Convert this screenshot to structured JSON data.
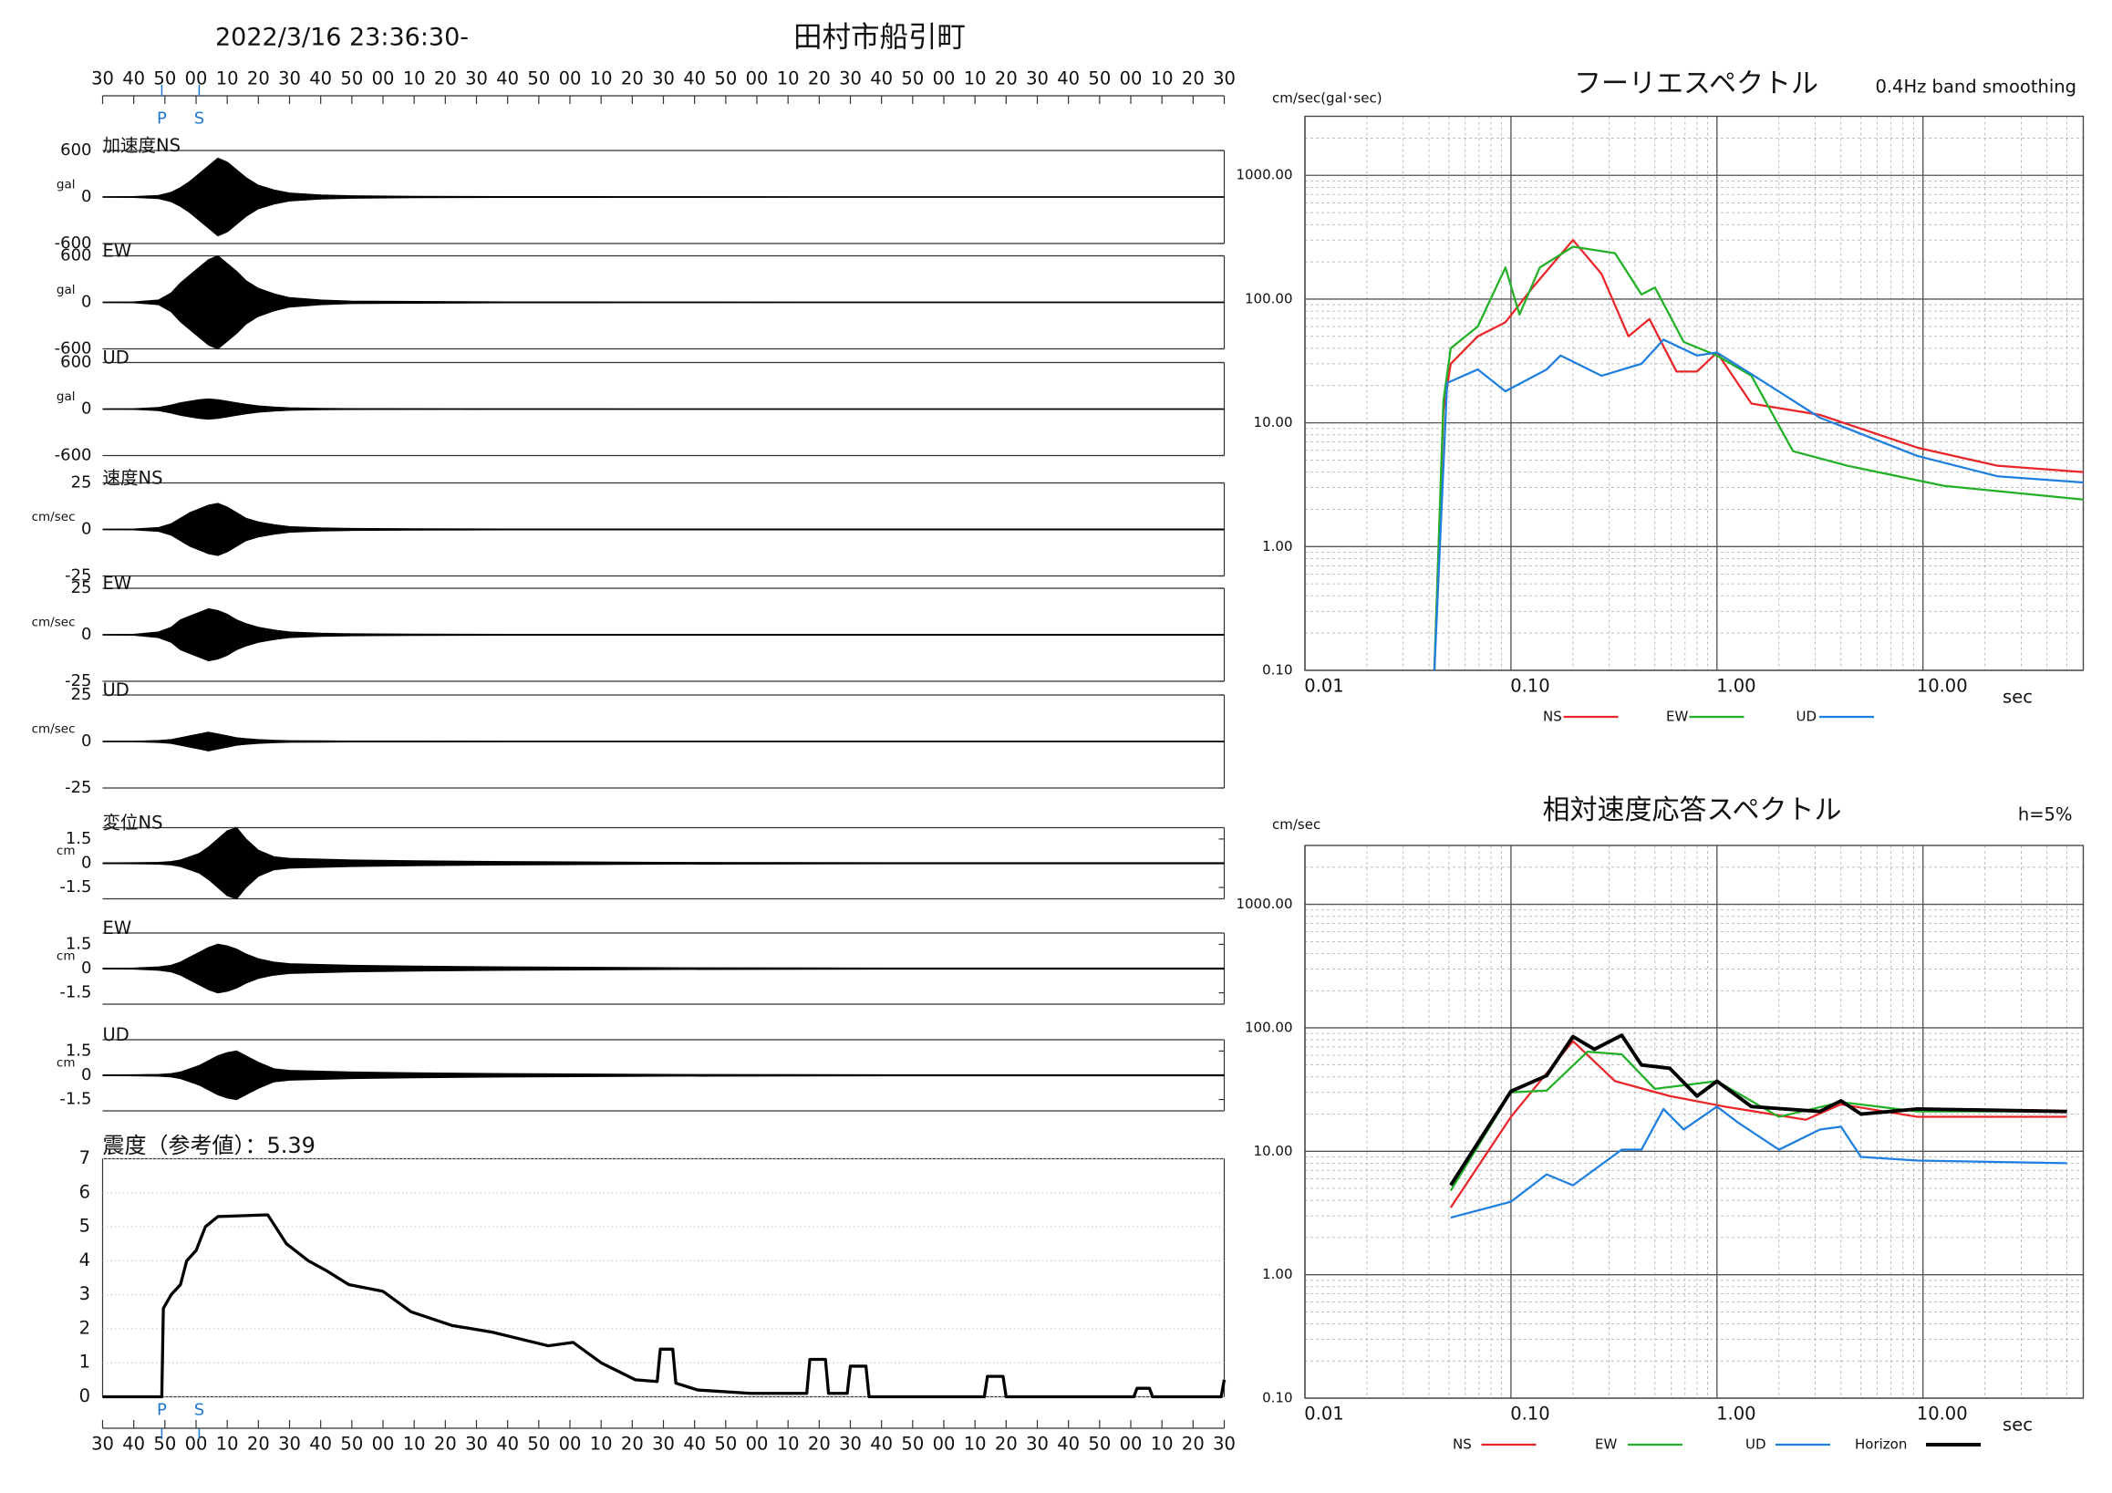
{
  "chart_data": [
    {
      "type": "waveform",
      "title": "2022/3/16 23:36:30-",
      "subtitle": "田村市船引町",
      "color": "#000000",
      "marker_color": "#1f77d0",
      "xlim": [
        0,
        360
      ],
      "xticks": [
        {
          "value": 0,
          "label": "30"
        },
        {
          "value": 10,
          "label": "40"
        },
        {
          "value": 20,
          "label": "50"
        },
        {
          "value": 30,
          "label": "00"
        },
        {
          "value": 40,
          "label": "10"
        },
        {
          "value": 50,
          "label": "20"
        },
        {
          "value": 60,
          "label": "30"
        },
        {
          "value": 70,
          "label": "40"
        },
        {
          "value": 80,
          "label": "50"
        },
        {
          "value": 90,
          "label": "00"
        },
        {
          "value": 100,
          "label": "10"
        },
        {
          "value": 110,
          "label": "20"
        },
        {
          "value": 120,
          "label": "30"
        },
        {
          "value": 130,
          "label": "40"
        },
        {
          "value": 140,
          "label": "50"
        },
        {
          "value": 150,
          "label": "00"
        },
        {
          "value": 160,
          "label": "10"
        },
        {
          "value": 170,
          "label": "20"
        },
        {
          "value": 180,
          "label": "30"
        },
        {
          "value": 190,
          "label": "40"
        },
        {
          "value": 200,
          "label": "50"
        },
        {
          "value": 210,
          "label": "00"
        },
        {
          "value": 220,
          "label": "10"
        },
        {
          "value": 230,
          "label": "20"
        },
        {
          "value": 240,
          "label": "30"
        },
        {
          "value": 250,
          "label": "40"
        },
        {
          "value": 260,
          "label": "50"
        },
        {
          "value": 270,
          "label": "00"
        },
        {
          "value": 280,
          "label": "10"
        },
        {
          "value": 290,
          "label": "20"
        },
        {
          "value": 300,
          "label": "30"
        },
        {
          "value": 310,
          "label": "40"
        },
        {
          "value": 320,
          "label": "50"
        },
        {
          "value": 330,
          "label": "00"
        },
        {
          "value": 340,
          "label": "10"
        },
        {
          "value": 350,
          "label": "20"
        },
        {
          "value": 360,
          "label": "30"
        }
      ],
      "markers": [
        {
          "name": "P",
          "value": 19
        },
        {
          "name": "S",
          "value": 31
        }
      ],
      "x": [
        0,
        10,
        18,
        22,
        25,
        28,
        31,
        34,
        37,
        40,
        43,
        46,
        50,
        55,
        60,
        70,
        80,
        100,
        130,
        180,
        250,
        360
      ],
      "traces": [
        {
          "name": "加速度NS",
          "unit": "gal",
          "ylim": [
            -600,
            600
          ],
          "yticks": [
            -600,
            0,
            600
          ],
          "values": [
            2,
            5,
            20,
            60,
            120,
            200,
            300,
            400,
            500,
            450,
            350,
            250,
            150,
            90,
            50,
            25,
            15,
            8,
            5,
            3,
            2,
            2
          ]
        },
        {
          "name": "EW",
          "unit": "gal",
          "ylim": [
            -600,
            600
          ],
          "yticks": [
            -600,
            0,
            600
          ],
          "values": [
            2,
            5,
            30,
            120,
            250,
            350,
            450,
            550,
            600,
            500,
            400,
            280,
            180,
            110,
            60,
            30,
            15,
            10,
            5,
            3,
            2,
            2
          ]
        },
        {
          "name": "UD",
          "unit": "gal",
          "ylim": [
            -600,
            600
          ],
          "yticks": [
            -600,
            0,
            600
          ],
          "values": [
            1,
            3,
            20,
            50,
            80,
            100,
            120,
            130,
            120,
            100,
            80,
            60,
            40,
            25,
            15,
            8,
            5,
            3,
            2,
            1,
            1,
            1
          ]
        },
        {
          "name": "速度NS",
          "unit": "cm/sec",
          "ylim": [
            -25,
            25
          ],
          "yticks": [
            -25,
            0,
            25
          ],
          "values": [
            0.1,
            0.2,
            1,
            3,
            6,
            9,
            11,
            13,
            14,
            12,
            9,
            6,
            4,
            2.5,
            1.5,
            0.8,
            0.5,
            0.3,
            0.2,
            0.2,
            0.2,
            0.2
          ]
        },
        {
          "name": "EW",
          "unit": "cm/sec",
          "ylim": [
            -25,
            25
          ],
          "yticks": [
            -25,
            0,
            25
          ],
          "values": [
            0.1,
            0.2,
            1.5,
            4,
            8,
            10,
            12,
            14,
            13,
            11,
            8,
            6,
            4,
            2.5,
            1.5,
            0.8,
            0.5,
            0.3,
            0.2,
            0.2,
            0.2,
            0.2
          ]
        },
        {
          "name": "UD",
          "unit": "cm/sec",
          "ylim": [
            -25,
            25
          ],
          "yticks": [
            -25,
            0,
            25
          ],
          "values": [
            0.1,
            0.1,
            0.5,
            1,
            2,
            3,
            4,
            5,
            4,
            3,
            2,
            1.5,
            1,
            0.6,
            0.4,
            0.3,
            0.2,
            0.2,
            0.1,
            0.1,
            0.1,
            0.1
          ]
        },
        {
          "name": "変位NS",
          "unit": "cm",
          "ylim": [
            -2.2,
            2.2
          ],
          "yticks": [
            -1.5,
            0,
            1.5
          ],
          "values": [
            0.02,
            0.03,
            0.05,
            0.1,
            0.2,
            0.4,
            0.6,
            1.0,
            1.5,
            2.0,
            2.2,
            1.5,
            0.8,
            0.4,
            0.3,
            0.25,
            0.2,
            0.15,
            0.1,
            0.05,
            0.03,
            0.03
          ]
        },
        {
          "name": "EW",
          "unit": "cm",
          "ylim": [
            -2.2,
            2.2
          ],
          "yticks": [
            -1.5,
            0,
            1.5
          ],
          "values": [
            0.02,
            0.03,
            0.1,
            0.2,
            0.4,
            0.7,
            1.0,
            1.3,
            1.5,
            1.4,
            1.2,
            0.9,
            0.6,
            0.4,
            0.3,
            0.25,
            0.2,
            0.15,
            0.1,
            0.05,
            0.03,
            0.03
          ]
        },
        {
          "name": "UD",
          "unit": "cm",
          "ylim": [
            -2.2,
            2.2
          ],
          "yticks": [
            -1.5,
            0,
            1.5
          ],
          "values": [
            0.02,
            0.03,
            0.05,
            0.1,
            0.2,
            0.4,
            0.6,
            0.9,
            1.2,
            1.4,
            1.5,
            1.2,
            0.8,
            0.4,
            0.3,
            0.25,
            0.2,
            0.15,
            0.1,
            0.05,
            0.03,
            0.03
          ]
        }
      ]
    },
    {
      "type": "line",
      "title": "震度（参考値）：5.39",
      "color": "#000000",
      "grid": true,
      "xlim": [
        0,
        360
      ],
      "ylim": [
        0,
        7
      ],
      "yticks": [
        0,
        1,
        2,
        3,
        4,
        5,
        6,
        7
      ],
      "x": [
        0,
        19,
        19.5,
        22,
        25,
        27,
        30,
        33,
        37,
        53,
        59,
        66,
        72,
        79,
        90,
        99,
        112,
        125,
        143,
        151,
        160,
        171,
        178,
        179,
        183,
        184,
        191,
        208,
        226,
        227,
        232,
        233,
        239,
        240,
        245,
        246,
        283,
        284,
        289,
        290,
        331,
        332,
        336,
        337,
        359,
        360
      ],
      "values": [
        0,
        0,
        2.6,
        3.0,
        3.3,
        4.0,
        4.3,
        5.0,
        5.3,
        5.35,
        4.5,
        4.0,
        3.7,
        3.3,
        3.1,
        2.5,
        2.1,
        1.9,
        1.5,
        1.6,
        1.0,
        0.5,
        0.45,
        1.4,
        1.4,
        0.4,
        0.2,
        0.1,
        0.1,
        1.1,
        1.1,
        0.1,
        0.1,
        0.9,
        0.9,
        0,
        0,
        0.6,
        0.6,
        0,
        0,
        0.25,
        0.25,
        0,
        0,
        0.5
      ]
    },
    {
      "type": "line",
      "title": "フーリエスペクトル",
      "note": "0.4Hz band smoothing",
      "ylabel": "cm/sec(gal･sec)",
      "xlabel": "sec",
      "log_x": true,
      "log_y": true,
      "grid": true,
      "xlim": [
        0.01,
        60
      ],
      "ylim": [
        0.1,
        3000
      ],
      "xticks": [
        0.01,
        {
          "value": 0.1,
          "label": "0.10"
        },
        {
          "value": 1,
          "label": "1.00"
        },
        {
          "value": 10,
          "label": "10.00"
        }
      ],
      "yticks": [
        {
          "value": 0.1,
          "label": "0.10"
        },
        {
          "value": 1,
          "label": "1.00"
        },
        {
          "value": 10,
          "label": "10.00"
        },
        {
          "value": 100,
          "label": "100.00"
        },
        {
          "value": 1000,
          "label": "1000.00"
        }
      ],
      "series": [
        {
          "name": "NS",
          "color": "#e8262a",
          "x": [
            0.0425,
            0.047,
            0.051,
            0.069,
            0.094,
            0.128,
            0.2,
            0.275,
            0.372,
            0.47,
            0.636,
            0.8,
            1.0,
            1.47,
            3.16,
            9.4,
            23,
            60
          ],
          "values": [
            0.1,
            12.5,
            30,
            50,
            65,
            125,
            300,
            160,
            50,
            69,
            26,
            26,
            37,
            14.3,
            11.6,
            6.3,
            4.5,
            4.0
          ]
        },
        {
          "name": "EW",
          "color": "#22b026",
          "x": [
            0.0425,
            0.047,
            0.051,
            0.069,
            0.094,
            0.11,
            0.138,
            0.2,
            0.32,
            0.43,
            0.5,
            0.69,
            1.0,
            1.47,
            2.34,
            4.3,
            12.6,
            60
          ],
          "values": [
            0.1,
            15,
            40,
            60,
            180,
            75,
            180,
            265,
            235,
            109,
            124,
            45,
            35,
            24,
            5.9,
            4.5,
            3.1,
            2.4
          ]
        },
        {
          "name": "UD",
          "color": "#1f7fe0",
          "x": [
            0.0425,
            0.049,
            0.069,
            0.094,
            0.149,
            0.174,
            0.275,
            0.43,
            0.55,
            0.8,
            1.0,
            1.72,
            3.16,
            9.4,
            23,
            60
          ],
          "values": [
            0.1,
            21,
            27,
            18,
            27,
            35,
            24,
            30,
            47,
            35,
            37,
            21,
            11,
            5.4,
            3.7,
            3.3
          ]
        }
      ]
    },
    {
      "type": "line",
      "title": "相対速度応答スペクトル",
      "note": "h=5%",
      "ylabel": "cm/sec",
      "xlabel": "sec",
      "log_x": true,
      "log_y": true,
      "grid": true,
      "xlim": [
        0.01,
        60
      ],
      "ylim": [
        0.1,
        3000
      ],
      "xticks": [
        0.01,
        {
          "value": 0.1,
          "label": "0.10"
        },
        {
          "value": 1,
          "label": "1.00"
        },
        {
          "value": 10,
          "label": "10.00"
        }
      ],
      "yticks": [
        {
          "value": 0.1,
          "label": "0.10"
        },
        {
          "value": 1,
          "label": "1.00"
        },
        {
          "value": 10,
          "label": "10.00"
        },
        {
          "value": 100,
          "label": "100.00"
        },
        {
          "value": 1000,
          "label": "1000.00"
        }
      ],
      "series": [
        {
          "name": "NS",
          "color": "#e8262a",
          "x": [
            0.051,
            0.1,
            0.2,
            0.32,
            0.59,
            1.09,
            2.7,
            4.0,
            9.4,
            50
          ],
          "values": [
            3.5,
            19,
            78,
            37,
            28,
            23,
            18,
            24,
            19,
            19
          ]
        },
        {
          "name": "EW",
          "color": "#22b026",
          "x": [
            0.051,
            0.1,
            0.149,
            0.235,
            0.345,
            0.5,
            1.0,
            2.0,
            4.0,
            9.4,
            50
          ],
          "values": [
            4.8,
            30,
            31,
            64,
            61,
            32,
            37,
            19,
            25,
            21,
            21
          ]
        },
        {
          "name": "UD",
          "color": "#1f7fe0",
          "x": [
            0.051,
            0.1,
            0.149,
            0.2,
            0.345,
            0.43,
            0.55,
            0.69,
            1.0,
            1.27,
            2.0,
            3.16,
            4.0,
            5.0,
            9.4,
            50
          ],
          "values": [
            2.9,
            3.9,
            6.5,
            5.3,
            10.3,
            10.3,
            22,
            15,
            23,
            17,
            10.3,
            15,
            15.8,
            9,
            8.4,
            8
          ]
        },
        {
          "name": "Horizon",
          "color": "#000000",
          "x": [
            0.051,
            0.1,
            0.149,
            0.2,
            0.254,
            0.345,
            0.43,
            0.59,
            0.8,
            1.0,
            1.47,
            3.16,
            4.0,
            5.0,
            9.4,
            50
          ],
          "values": [
            5.3,
            30.6,
            41,
            85,
            67,
            87,
            50,
            47,
            28,
            37,
            23,
            21,
            25.6,
            20,
            22,
            21
          ]
        }
      ]
    }
  ]
}
